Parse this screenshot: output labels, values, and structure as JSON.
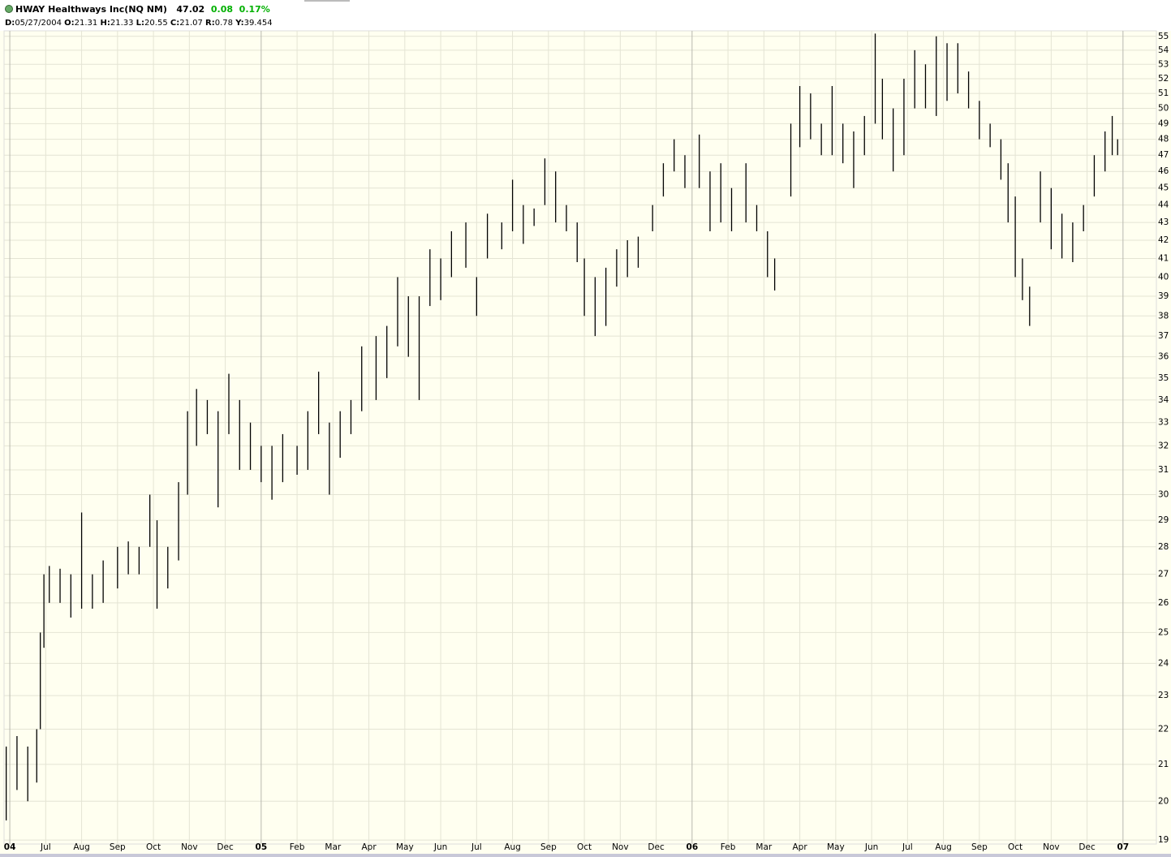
{
  "header": {
    "symbol": "HWAY Healthways Inc(NQ NM)",
    "last": "47.02",
    "change": "0.08",
    "change_pct": "0.17%",
    "fields": [
      {
        "label": "D:",
        "value": "05/27/2004"
      },
      {
        "label": "O:",
        "value": "21.31"
      },
      {
        "label": "H:",
        "value": "21.33"
      },
      {
        "label": "L:",
        "value": "20.55"
      },
      {
        "label": "C:",
        "value": "21.07"
      },
      {
        "label": "R:",
        "value": "0.78"
      },
      {
        "label": "Y:",
        "value": "39.454"
      }
    ]
  },
  "chart_data": {
    "type": "ohlc",
    "log_scale": true,
    "grid": true,
    "color": "#000000",
    "x": [
      -0.1,
      0.2,
      0.5,
      0.75,
      0.85,
      0.95,
      1.1,
      1.4,
      1.7,
      2.0,
      2.3,
      2.6,
      3.0,
      3.3,
      3.6,
      3.9,
      4.1,
      4.4,
      4.7,
      4.95,
      5.2,
      5.5,
      5.8,
      6.1,
      6.4,
      6.7,
      7.0,
      7.3,
      7.6,
      8.0,
      8.3,
      8.6,
      8.9,
      9.2,
      9.5,
      9.8,
      10.2,
      10.5,
      10.8,
      11.1,
      11.4,
      11.7,
      12.0,
      12.3,
      12.7,
      13.0,
      13.3,
      13.7,
      14.0,
      14.3,
      14.6,
      14.9,
      15.2,
      15.5,
      15.8,
      16.0,
      16.3,
      16.6,
      16.9,
      17.2,
      17.5,
      17.9,
      18.2,
      18.5,
      18.8,
      19.2,
      19.5,
      19.8,
      20.1,
      20.5,
      20.8,
      21.1,
      21.3,
      21.75,
      22.0,
      22.3,
      22.6,
      22.9,
      23.2,
      23.5,
      23.8,
      24.1,
      24.3,
      24.6,
      24.9,
      25.2,
      25.5,
      25.8,
      26.1,
      26.4,
      26.7,
      27.0,
      27.3,
      27.6,
      27.8,
      28.0,
      28.2,
      28.4,
      28.7,
      29.0,
      29.3,
      29.6,
      29.9,
      30.2,
      30.5,
      30.7,
      30.85
    ],
    "high": [
      21.5,
      21.8,
      21.5,
      22,
      25,
      27,
      27.3,
      27.2,
      27,
      29.3,
      27,
      27.5,
      28,
      28.2,
      28,
      30,
      29,
      28,
      30.5,
      33.5,
      34.5,
      34,
      33.5,
      35.2,
      34,
      33,
      32,
      32,
      32.5,
      32,
      33.5,
      35.3,
      33,
      33.5,
      34,
      36.5,
      37,
      37.5,
      40,
      39,
      39,
      41.5,
      41,
      42.5,
      43,
      40,
      43.5,
      43,
      45.5,
      44,
      43.8,
      46.8,
      46,
      44,
      43,
      41,
      40,
      40.5,
      41.5,
      42,
      42.2,
      44,
      46.5,
      48,
      47,
      48.3,
      46,
      46.5,
      45,
      46.5,
      44,
      42.5,
      41,
      49,
      51.5,
      51,
      49,
      51.5,
      49,
      48.5,
      49.5,
      55.2,
      52,
      50,
      52,
      54,
      53,
      55,
      54.5,
      54.5,
      52.5,
      50.5,
      49,
      48,
      46.5,
      44.5,
      41,
      39.5,
      46,
      45,
      43.5,
      43,
      44,
      47,
      48.5,
      49.5,
      48
    ],
    "low": [
      19.5,
      20.3,
      20,
      20.5,
      22,
      24.5,
      26,
      26,
      25.5,
      25.8,
      25.8,
      26,
      26.5,
      27,
      27,
      28,
      25.8,
      26.5,
      27.5,
      30,
      32,
      32.5,
      29.5,
      32.5,
      31,
      31,
      30.5,
      29.8,
      30.5,
      30.8,
      31,
      32.5,
      30,
      31.5,
      32.5,
      33.5,
      34,
      35,
      36.5,
      36,
      34,
      38.5,
      38.8,
      40,
      40.5,
      38,
      41,
      41.5,
      42.5,
      41.8,
      42.8,
      44,
      43,
      42.5,
      40.8,
      38,
      37,
      37.5,
      39.5,
      40,
      40.5,
      42.5,
      44.5,
      46,
      45,
      45,
      42.5,
      43,
      42.5,
      43,
      42.5,
      40,
      39.3,
      44.5,
      47.5,
      48,
      47,
      47,
      46.5,
      45,
      47,
      49,
      48,
      46,
      47,
      50,
      50,
      49.5,
      50.5,
      51,
      50,
      48,
      47.5,
      45.5,
      43,
      40,
      38.8,
      37.5,
      43,
      41.5,
      41,
      40.8,
      42.5,
      44.5,
      46,
      47,
      47
    ],
    "xlim": [
      -0.16,
      31.93
    ],
    "xticks": [
      {
        "value": 0,
        "label": "04"
      },
      {
        "value": 1,
        "label": "Jul"
      },
      {
        "value": 2,
        "label": "Aug"
      },
      {
        "value": 3,
        "label": "Sep"
      },
      {
        "value": 4,
        "label": "Oct"
      },
      {
        "value": 5,
        "label": "Nov"
      },
      {
        "value": 6,
        "label": "Dec"
      },
      {
        "value": 7,
        "label": "05"
      },
      {
        "value": 8,
        "label": "Feb"
      },
      {
        "value": 9,
        "label": "Mar"
      },
      {
        "value": 10,
        "label": "Apr"
      },
      {
        "value": 11,
        "label": "May"
      },
      {
        "value": 12,
        "label": "Jun"
      },
      {
        "value": 13,
        "label": "Jul"
      },
      {
        "value": 14,
        "label": "Aug"
      },
      {
        "value": 15,
        "label": "Sep"
      },
      {
        "value": 16,
        "label": "Oct"
      },
      {
        "value": 17,
        "label": "Nov"
      },
      {
        "value": 18,
        "label": "Dec"
      },
      {
        "value": 19,
        "label": "06"
      },
      {
        "value": 20,
        "label": "Feb"
      },
      {
        "value": 21,
        "label": "Mar"
      },
      {
        "value": 22,
        "label": "Apr"
      },
      {
        "value": 23,
        "label": "May"
      },
      {
        "value": 24,
        "label": "Jun"
      },
      {
        "value": 25,
        "label": "Jul"
      },
      {
        "value": 26,
        "label": "Aug"
      },
      {
        "value": 27,
        "label": "Sep"
      },
      {
        "value": 28,
        "label": "Oct"
      },
      {
        "value": 29,
        "label": "Nov"
      },
      {
        "value": 30,
        "label": "Dec"
      },
      {
        "value": 31,
        "label": "07"
      }
    ],
    "ylim": [
      18.9,
      55.4
    ],
    "yticks": [
      19,
      20,
      21,
      22,
      23,
      24,
      25,
      26,
      27,
      28,
      29,
      30,
      31,
      32,
      33,
      34,
      35,
      36,
      37,
      38,
      39,
      40,
      41,
      42,
      43,
      44,
      45,
      46,
      47,
      48,
      49,
      50,
      51,
      52,
      53,
      54,
      55
    ]
  }
}
